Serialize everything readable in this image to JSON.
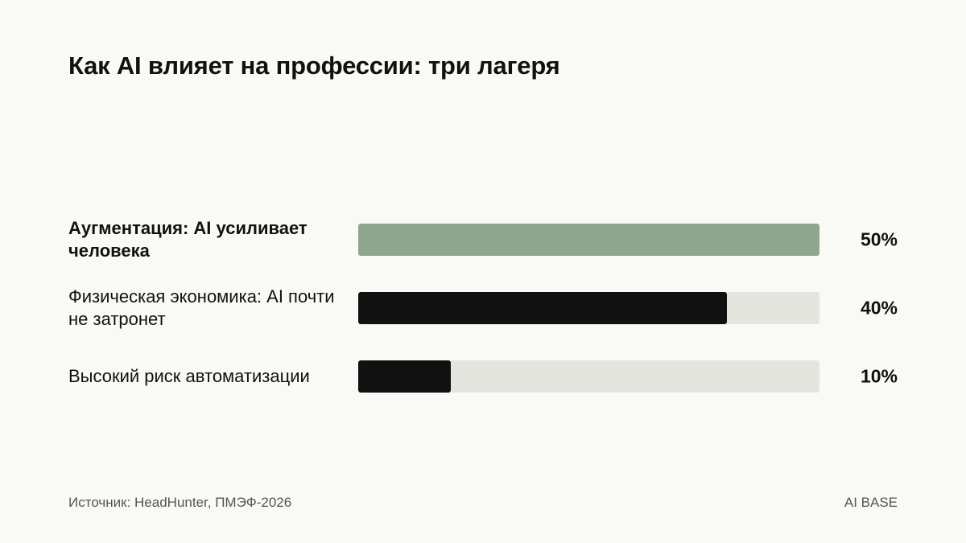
{
  "title": "Как AI влияет на профессии: три лагеря",
  "chart_data": {
    "type": "bar",
    "orientation": "horizontal",
    "title": "Как AI влияет на профессии: три лагеря",
    "categories": [
      "Аугментация: AI усиливает человека",
      "Физическая экономика: AI почти не затронет",
      "Высокий риск автоматизации"
    ],
    "values": [
      50,
      40,
      10
    ],
    "value_labels": [
      "50%",
      "40%",
      "10%"
    ],
    "xlim": [
      0,
      50
    ],
    "unit": "%",
    "bar_colors": [
      "#8fa68f",
      "#111111",
      "#111111"
    ],
    "track_color": "#e5e5e0",
    "highlighted": [
      true,
      false,
      false
    ]
  },
  "footer": {
    "source": "Источник: HeadHunter, ПМЭФ-2026",
    "brand": "AI BASE"
  }
}
